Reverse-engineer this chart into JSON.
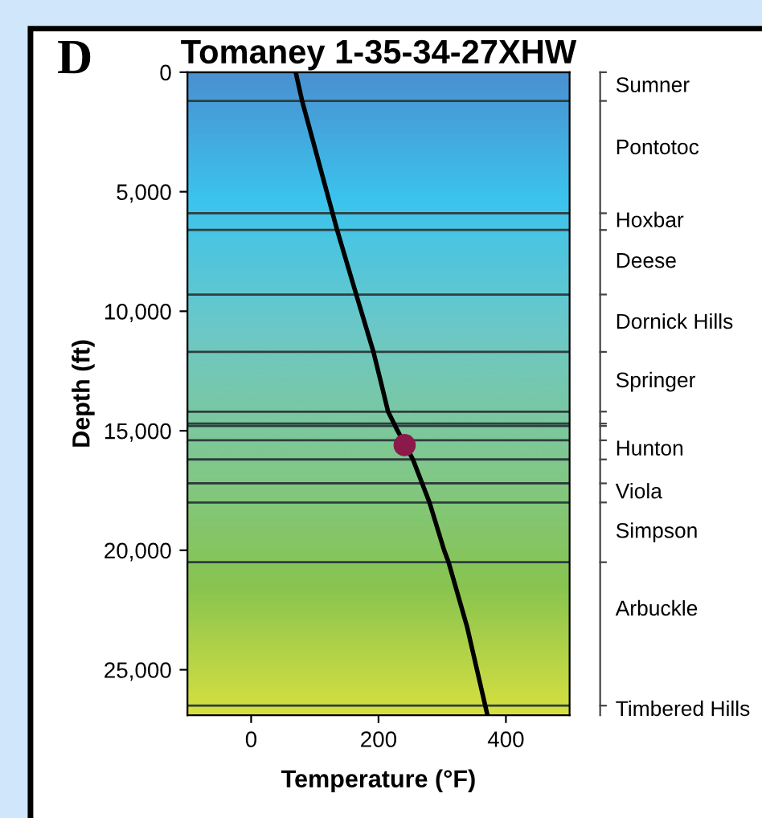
{
  "chart_data": {
    "type": "line",
    "title": "Tomaney 1-35-34-27XHW",
    "xlabel": "Temperature (°F)",
    "ylabel": "Depth (ft)",
    "annotations": [
      "D"
    ],
    "xlim": [
      -100,
      500
    ],
    "xticks": [
      0,
      200,
      400
    ],
    "ylim": [
      26900,
      0
    ],
    "yticks": [
      0,
      {
        "value": 5000,
        "label": "5,000"
      },
      {
        "value": 10000,
        "label": "10,000"
      },
      {
        "value": 15000,
        "label": "15,000"
      },
      {
        "value": 20000,
        "label": "20,000"
      },
      {
        "value": 25000,
        "label": "25,000"
      }
    ],
    "grid": false,
    "legend": false,
    "marker": "none",
    "line_style": "solid",
    "series": [
      {
        "color": "#000000",
        "x": [
          70,
          80,
          135,
          165,
          192,
          205,
          215,
          228,
          254,
          280,
          303,
          310,
          339,
          371
        ],
        "values": [
          0,
          1200,
          6600,
          9300,
          11700,
          13100,
          14200,
          14900,
          16200,
          18000,
          20000,
          20500,
          23200,
          26900
        ]
      },
      {
        "type": "scatter",
        "color": "#8b1a4a",
        "x": [
          241
        ],
        "values": [
          15600
        ],
        "marker": "circle"
      }
    ],
    "ref_lines": [
      {
        "axis": "y",
        "value": 0,
        "color": "#2e3e3e",
        "label": "Sumner"
      },
      {
        "axis": "y",
        "value": 1200,
        "color": "#2e3e3e",
        "label": "Pontotoc"
      },
      {
        "axis": "y",
        "value": 5900,
        "color": "#2e3e3e",
        "label": "Hoxbar"
      },
      {
        "axis": "y",
        "value": 6600,
        "color": "#2e3e3e",
        "label": "Deese"
      },
      {
        "axis": "y",
        "value": 9300,
        "color": "#2e3e3e",
        "label": "Dornick Hills"
      },
      {
        "axis": "y",
        "value": 11700,
        "color": "#2e3e3e",
        "label": "Springer"
      },
      {
        "axis": "y",
        "value": 14200,
        "color": "#2e3e3e"
      },
      {
        "axis": "y",
        "value": 14700,
        "color": "#2e3e3e"
      },
      {
        "axis": "y",
        "value": 14800,
        "color": "#2e3e3e"
      },
      {
        "axis": "y",
        "value": 15400,
        "color": "#2e3e3e",
        "label": "Hunton"
      },
      {
        "axis": "y",
        "value": 16200,
        "color": "#2e3e3e"
      },
      {
        "axis": "y",
        "value": 17200,
        "color": "#2e3e3e",
        "label": "Viola"
      },
      {
        "axis": "y",
        "value": 18000,
        "color": "#2e3e3e",
        "label": "Simpson"
      },
      {
        "axis": "y",
        "value": 20500,
        "color": "#2e3e3e",
        "label": "Arbuckle"
      },
      {
        "axis": "y",
        "value": 26500,
        "color": "#2e3e3e",
        "label": "Timbered Hills"
      }
    ]
  }
}
